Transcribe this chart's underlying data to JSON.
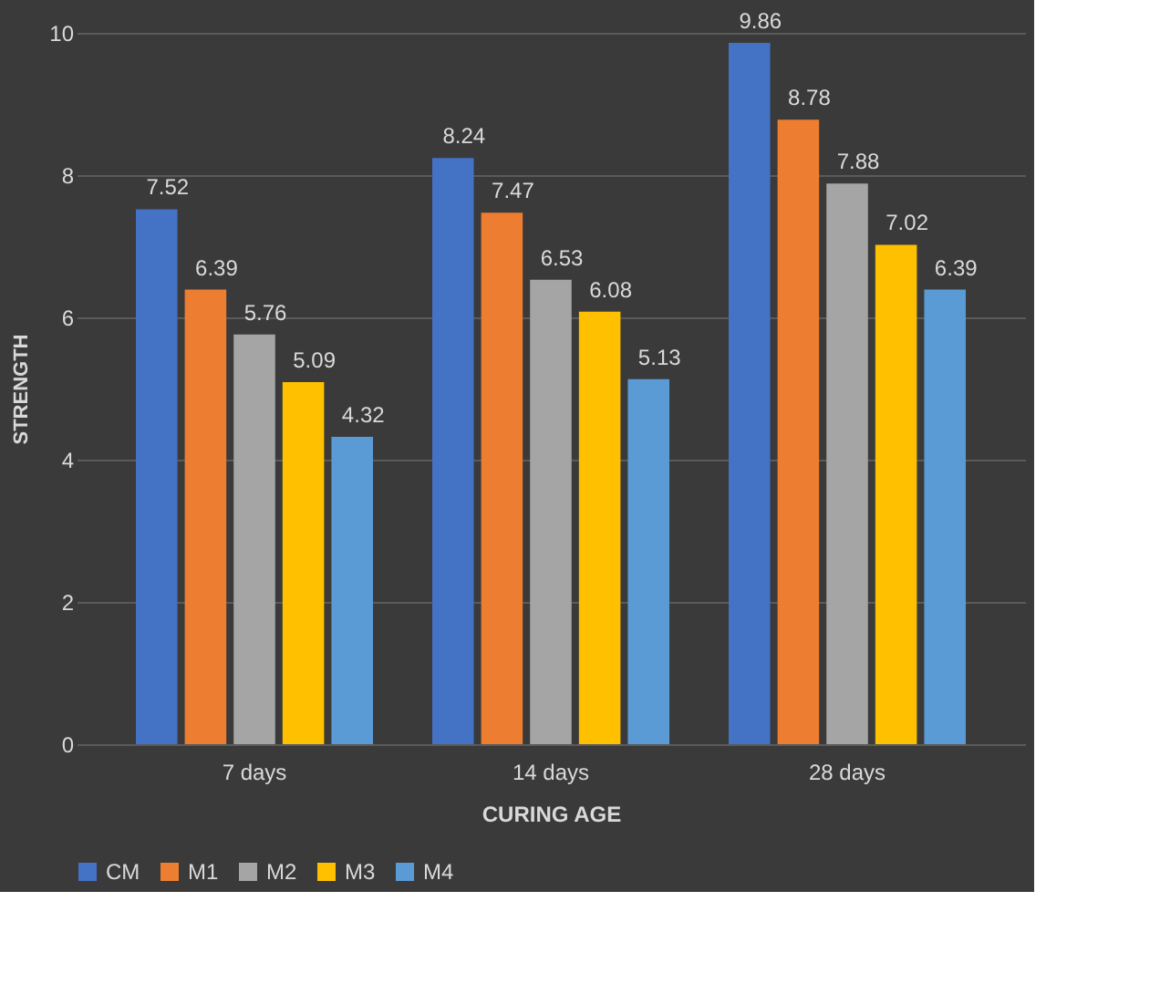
{
  "chart_data": {
    "type": "bar",
    "xlabel": "CURING AGE",
    "ylabel": "STRENGTH",
    "categories": [
      "7 days",
      "14 days",
      "28 days"
    ],
    "series": [
      {
        "name": "CM",
        "color": "#4472c4",
        "values": [
          7.52,
          8.24,
          9.86
        ]
      },
      {
        "name": "M1",
        "color": "#ed7d31",
        "values": [
          6.39,
          7.47,
          8.78
        ]
      },
      {
        "name": "M2",
        "color": "#a5a5a5",
        "values": [
          5.76,
          6.53,
          7.88
        ]
      },
      {
        "name": "M3",
        "color": "#ffc000",
        "values": [
          5.09,
          6.08,
          7.02
        ]
      },
      {
        "name": "M4",
        "color": "#5b9bd5",
        "values": [
          4.32,
          5.13,
          6.39
        ]
      }
    ],
    "ylim": [
      0,
      10
    ],
    "yticks": [
      0,
      2,
      4,
      6,
      8,
      10
    ],
    "grid": "y",
    "legend": "bottom",
    "data_labels": true
  }
}
